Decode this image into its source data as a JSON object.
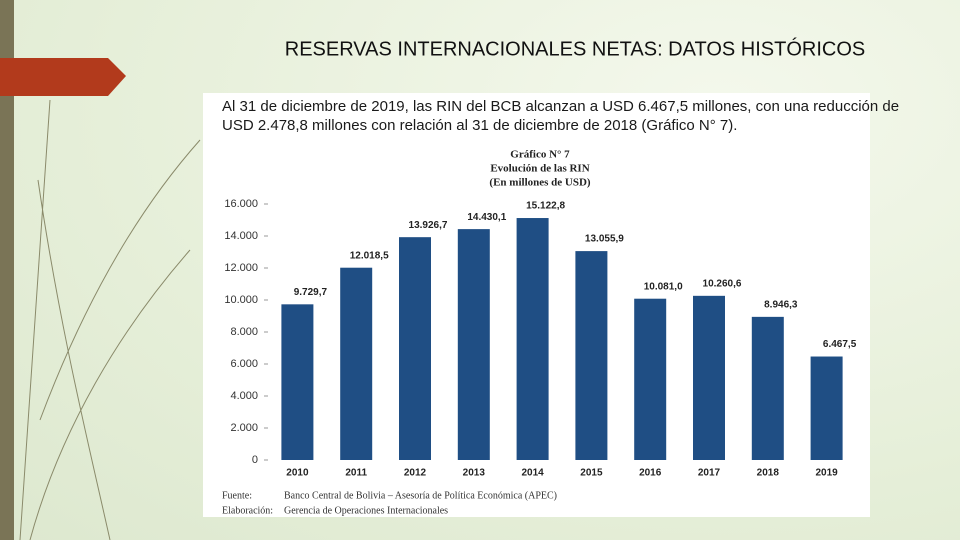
{
  "slide_title": "RESERVAS INTERNACIONALES NETAS: DATOS HISTÓRICOS",
  "intro": [
    "Al 31 de diciembre de 2019, las RIN del BCB alcanzan a USD 6.467,5 millones, con una reducción de",
    "USD 2.478,8 millones con relación al 31 de diciembre de 2018 (Gráfico N° 7)."
  ],
  "chart_data": {
    "type": "bar",
    "title": "Gráfico N° 7",
    "subtitle": "Evolución de las RIN",
    "unit_note": "(En millones de USD)",
    "categories": [
      "2010",
      "2011",
      "2012",
      "2013",
      "2014",
      "2015",
      "2016",
      "2017",
      "2018",
      "2019"
    ],
    "values": [
      9729.7,
      12018.5,
      13926.7,
      14430.1,
      15122.8,
      13055.9,
      10081.0,
      10260.6,
      8946.3,
      6467.5
    ],
    "value_labels": [
      "9.729,7",
      "12.018,5",
      "13.926,7",
      "14.430,1",
      "15.122,8",
      "13.055,9",
      "10.081,0",
      "10.260,6",
      "8.946,3",
      "6.467,5"
    ],
    "color": "#1f4e84",
    "ylim": [
      0,
      16000
    ],
    "yticks": [
      0,
      {
        "value": 2000,
        "label": "2.000"
      },
      {
        "value": 4000,
        "label": "4.000"
      },
      {
        "value": 6000,
        "label": "6.000"
      },
      {
        "value": 8000,
        "label": "8.000"
      },
      {
        "value": 10000,
        "label": "10.000"
      },
      {
        "value": 12000,
        "label": "12.000"
      },
      {
        "value": 14000,
        "label": "14.000"
      },
      {
        "value": 16000,
        "label": "16.000"
      }
    ],
    "grid": false
  },
  "source": [
    {
      "label": "Fuente:",
      "text": "Banco Central de Bolivia – Asesoría de Política Económica (APEC)"
    },
    {
      "label": "Elaboración:",
      "text": "Gerencia de Operaciones Internacionales"
    }
  ]
}
